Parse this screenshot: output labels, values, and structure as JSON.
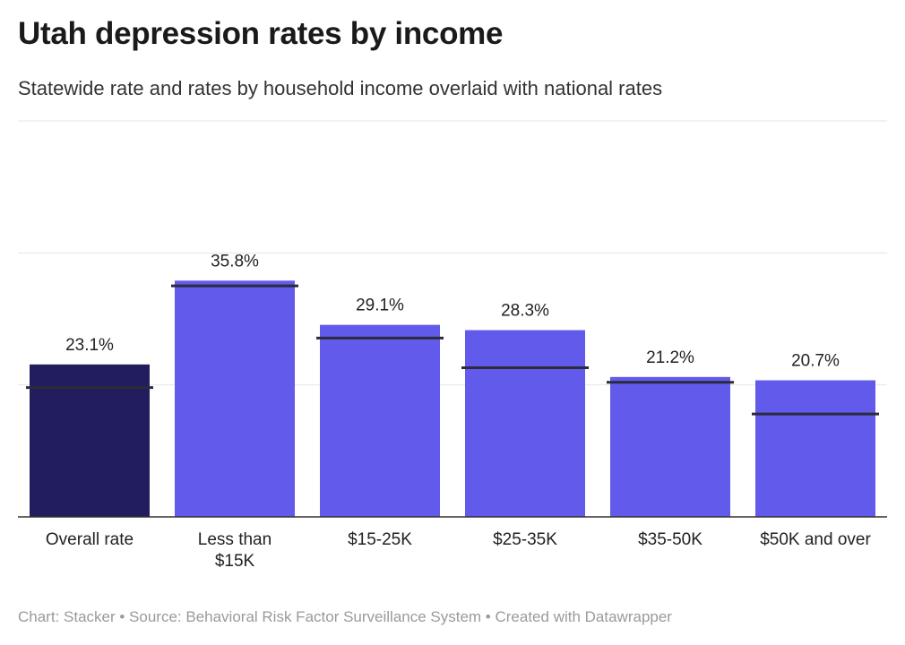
{
  "header": {
    "title": "Utah depression rates by income",
    "subtitle": "Statewide rate and rates by household income overlaid with national rates"
  },
  "chart_data": {
    "type": "bar",
    "title": "Utah depression rates by income",
    "subtitle": "Statewide rate and rates by household income overlaid with national rates",
    "categories": [
      "Overall rate",
      "Less than $15K",
      "$15-25K",
      "$25-35K",
      "$35-50K",
      "$50K and over"
    ],
    "category_lines": [
      [
        "Overall rate"
      ],
      [
        "Less than",
        "$15K"
      ],
      [
        "$15-25K"
      ],
      [
        "$25-35K"
      ],
      [
        "$35-50K"
      ],
      [
        "$50K and over"
      ]
    ],
    "values": [
      23.1,
      35.8,
      29.1,
      28.3,
      21.2,
      20.7
    ],
    "value_labels": [
      "23.1%",
      "35.8%",
      "29.1%",
      "28.3%",
      "21.2%",
      "20.7%"
    ],
    "overlay_values": [
      19.6,
      35.0,
      27.1,
      22.6,
      20.4,
      15.6
    ],
    "ylim": [
      0,
      60
    ],
    "gridlines": [
      20,
      40,
      60
    ],
    "grid": true,
    "colors": {
      "highlight": "#221e5e",
      "bar": "#615aea",
      "overlay": "#2b2b3a",
      "grid": "#e6e6e6"
    }
  },
  "footer": {
    "text": "Chart: Stacker • Source: Behavioral Risk Factor Surveillance System • Created with Datawrapper"
  }
}
